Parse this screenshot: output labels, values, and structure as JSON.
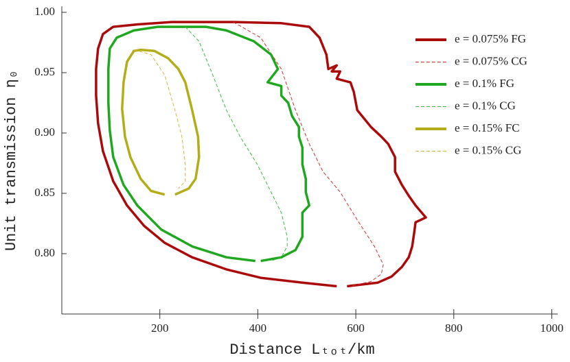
{
  "chart_data": {
    "type": "line",
    "xlabel": "Distance Lₜₒₜ/km",
    "ylabel": "Unit transmission η₀",
    "xlim": [
      0,
      1000
    ],
    "ylim": [
      0.75,
      1.005
    ],
    "xticks": [
      200,
      400,
      600,
      800,
      1000
    ],
    "yticks": [
      {
        "value": 1,
        "label": "1.00"
      },
      0.95,
      {
        "value": 0.9,
        "label": "0.90"
      },
      0.85,
      {
        "value": 0.8,
        "label": "0.80"
      }
    ],
    "grid": false,
    "legend": "upper right",
    "series": [
      {
        "name": "e = 0.075% FG",
        "color": "#aa0a0a",
        "style": "solid",
        "x": [
          561,
          491,
          406,
          336,
          266,
          210,
          168,
          133,
          105,
          84,
          74,
          70,
          70,
          74,
          84,
          105,
          154,
          224,
          350,
          448,
          505,
          526,
          540,
          544,
          561,
          551,
          568,
          561,
          589,
          596,
          603,
          631,
          652,
          666,
          680,
          680,
          694,
          708,
          722,
          743,
          722,
          719,
          715,
          708,
          694,
          673,
          645,
          603,
          582
        ],
        "values": [
          0.773,
          0.776,
          0.78,
          0.787,
          0.797,
          0.809,
          0.823,
          0.84,
          0.86,
          0.885,
          0.908,
          0.931,
          0.953,
          0.97,
          0.982,
          0.988,
          0.99,
          0.992,
          0.992,
          0.991,
          0.988,
          0.979,
          0.965,
          0.953,
          0.956,
          0.951,
          0.951,
          0.945,
          0.942,
          0.934,
          0.919,
          0.905,
          0.897,
          0.891,
          0.88,
          0.868,
          0.857,
          0.848,
          0.84,
          0.83,
          0.826,
          0.817,
          0.806,
          0.797,
          0.789,
          0.781,
          0.776,
          0.774,
          0.773
        ]
      },
      {
        "name": "e = 0.075% CG",
        "color": "#cc3030",
        "style": "dashed",
        "x": [
          350,
          406,
          448,
          477,
          505,
          533,
          568,
          603,
          638,
          656,
          652,
          631,
          589
        ],
        "values": [
          0.992,
          0.979,
          0.953,
          0.919,
          0.891,
          0.868,
          0.851,
          0.828,
          0.806,
          0.791,
          0.783,
          0.777,
          0.773
        ]
      },
      {
        "name": "e = 0.1% FG",
        "color": "#1fa81f",
        "style": "solid",
        "x": [
          395,
          336,
          266,
          203,
          154,
          126,
          105,
          98,
          95,
          95,
          98,
          112,
          147,
          196,
          294,
          336,
          392,
          427,
          441,
          420,
          448,
          448,
          462,
          470,
          484,
          484,
          491,
          491,
          498,
          498,
          505,
          491,
          491,
          477,
          448,
          406
        ],
        "values": [
          0.794,
          0.797,
          0.806,
          0.82,
          0.84,
          0.857,
          0.88,
          0.902,
          0.925,
          0.953,
          0.97,
          0.979,
          0.985,
          0.988,
          0.988,
          0.985,
          0.976,
          0.965,
          0.953,
          0.942,
          0.939,
          0.931,
          0.925,
          0.914,
          0.905,
          0.897,
          0.888,
          0.874,
          0.862,
          0.851,
          0.84,
          0.834,
          0.814,
          0.803,
          0.797,
          0.794
        ]
      },
      {
        "name": "e = 0.1% CG",
        "color": "#3fb83f",
        "style": "dashed",
        "x": [
          252,
          280,
          308,
          336,
          364,
          399,
          427,
          448,
          460,
          460,
          448,
          427
        ],
        "values": [
          0.988,
          0.976,
          0.948,
          0.919,
          0.897,
          0.874,
          0.851,
          0.834,
          0.814,
          0.806,
          0.797,
          0.794
        ]
      },
      {
        "name": "e = 0.15% FC",
        "color": "#b3ad1a",
        "style": "solid",
        "x": [
          210,
          182,
          161,
          140,
          129,
          123,
          126,
          133,
          147,
          161,
          189,
          217,
          238,
          252,
          266,
          278,
          280,
          273,
          259,
          231
        ],
        "values": [
          0.849,
          0.852,
          0.862,
          0.88,
          0.897,
          0.92,
          0.942,
          0.959,
          0.968,
          0.969,
          0.968,
          0.962,
          0.953,
          0.942,
          0.919,
          0.897,
          0.88,
          0.862,
          0.854,
          0.849
        ]
      },
      {
        "name": "e = 0.15% CG",
        "color": "#d4b540",
        "style": "dashed",
        "x": [
          147,
          182,
          210,
          231,
          245,
          252,
          252,
          238
        ],
        "values": [
          0.969,
          0.965,
          0.948,
          0.919,
          0.897,
          0.874,
          0.86,
          0.854
        ]
      }
    ]
  }
}
